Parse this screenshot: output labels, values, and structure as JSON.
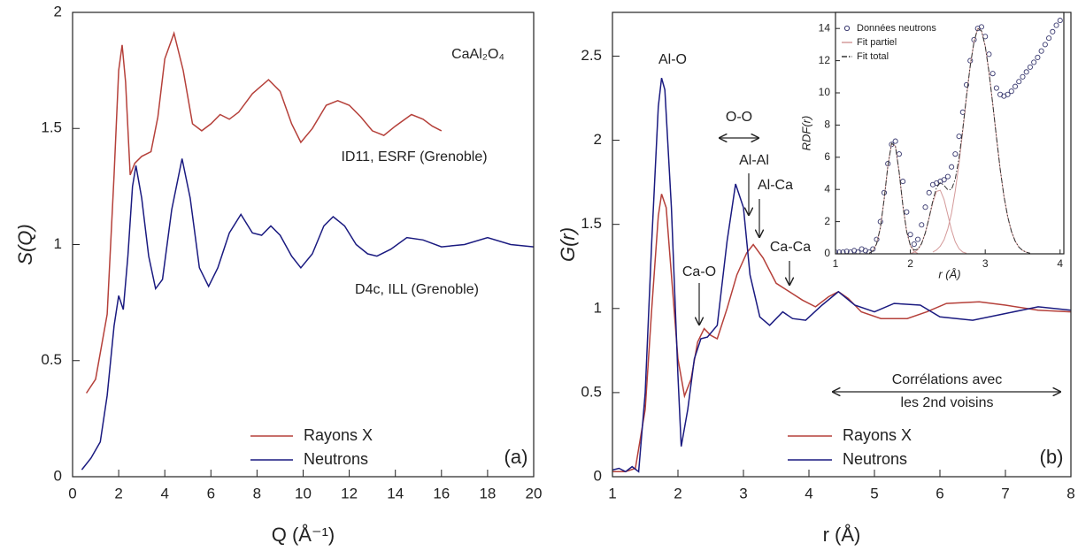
{
  "chart_data": [
    {
      "type": "line",
      "xlabel": "Q (Å⁻¹)",
      "ylabel": "S(Q)",
      "xlim": [
        0,
        20
      ],
      "ylim": [
        0,
        2
      ],
      "xticks": [
        0,
        2,
        4,
        6,
        8,
        10,
        12,
        14,
        16,
        18,
        20
      ],
      "yticks": [
        0,
        0.5,
        1,
        1.5,
        2
      ],
      "annotations": [
        "CaAl₂O₄",
        "ID11, ESRF (Grenoble)",
        "D4c, ILL (Grenoble)",
        "(a)"
      ],
      "series": [
        {
          "name": "Rayons X",
          "color": "#b5403a",
          "x": [
            0.6,
            1.0,
            1.5,
            1.8,
            2.0,
            2.15,
            2.3,
            2.5,
            2.7,
            3.0,
            3.4,
            3.7,
            4.0,
            4.4,
            4.8,
            5.2,
            5.6,
            6.0,
            6.4,
            6.8,
            7.2,
            7.8,
            8.5,
            9.0,
            9.5,
            9.9,
            10.4,
            11.0,
            11.5,
            12.0,
            12.5,
            13.0,
            13.5,
            14.0,
            14.7,
            15.2,
            15.6,
            16.0
          ],
          "values": [
            0.36,
            0.42,
            0.7,
            1.3,
            1.75,
            1.86,
            1.7,
            1.3,
            1.35,
            1.38,
            1.4,
            1.55,
            1.8,
            1.91,
            1.75,
            1.52,
            1.49,
            1.52,
            1.56,
            1.54,
            1.57,
            1.65,
            1.71,
            1.66,
            1.52,
            1.44,
            1.5,
            1.6,
            1.62,
            1.6,
            1.55,
            1.49,
            1.47,
            1.51,
            1.56,
            1.54,
            1.51,
            1.49
          ]
        },
        {
          "name": "Neutrons",
          "color": "#1a1a80",
          "x": [
            0.4,
            0.8,
            1.2,
            1.5,
            1.8,
            2.0,
            2.2,
            2.4,
            2.6,
            2.75,
            3.0,
            3.3,
            3.6,
            3.9,
            4.3,
            4.75,
            5.1,
            5.5,
            5.9,
            6.3,
            6.8,
            7.3,
            7.8,
            8.2,
            8.6,
            9.0,
            9.5,
            9.9,
            10.4,
            10.9,
            11.3,
            11.8,
            12.3,
            12.8,
            13.2,
            13.8,
            14.5,
            15.2,
            16,
            17,
            18,
            19,
            20
          ],
          "values": [
            0.03,
            0.08,
            0.15,
            0.35,
            0.65,
            0.78,
            0.72,
            0.95,
            1.25,
            1.34,
            1.2,
            0.95,
            0.81,
            0.85,
            1.15,
            1.37,
            1.2,
            0.9,
            0.82,
            0.9,
            1.05,
            1.13,
            1.05,
            1.04,
            1.08,
            1.04,
            0.95,
            0.9,
            0.96,
            1.08,
            1.12,
            1.08,
            1.0,
            0.96,
            0.95,
            0.98,
            1.03,
            1.02,
            0.99,
            1.0,
            1.03,
            1.0,
            0.99
          ]
        }
      ]
    },
    {
      "type": "line",
      "xlabel": "r (Å)",
      "ylabel": "G(r)",
      "xlim": [
        1,
        8
      ],
      "ylim": [
        0,
        2.76
      ],
      "xticks": [
        1,
        2,
        3,
        4,
        5,
        6,
        7,
        8
      ],
      "yticks": [
        0,
        0.5,
        1,
        1.5,
        2,
        2.5
      ],
      "annotations": [
        "Al-O",
        "O-O",
        "Al-Al",
        "Al-Ca",
        "Ca-O",
        "Ca-Ca",
        "Corrélations avec",
        "les 2nd voisins",
        "(b)"
      ],
      "series": [
        {
          "name": "Rayons X",
          "color": "#b5403a",
          "x": [
            1.0,
            1.2,
            1.35,
            1.5,
            1.6,
            1.7,
            1.75,
            1.82,
            1.9,
            2.0,
            2.1,
            2.2,
            2.3,
            2.4,
            2.5,
            2.6,
            2.75,
            2.9,
            3.05,
            3.15,
            3.3,
            3.5,
            3.7,
            3.9,
            4.1,
            4.3,
            4.45,
            4.6,
            4.8,
            5.1,
            5.5,
            5.8,
            6.1,
            6.6,
            7.0,
            7.5,
            8.0
          ],
          "values": [
            0.03,
            0.03,
            0.05,
            0.4,
            1.0,
            1.55,
            1.68,
            1.6,
            1.2,
            0.7,
            0.48,
            0.58,
            0.8,
            0.88,
            0.84,
            0.82,
            1.0,
            1.2,
            1.33,
            1.38,
            1.3,
            1.15,
            1.1,
            1.05,
            1.01,
            1.07,
            1.1,
            1.06,
            0.98,
            0.94,
            0.94,
            0.98,
            1.03,
            1.04,
            1.02,
            0.99,
            0.98
          ]
        },
        {
          "name": "Neutrons",
          "color": "#1a1a80",
          "x": [
            1.0,
            1.1,
            1.2,
            1.3,
            1.4,
            1.5,
            1.6,
            1.7,
            1.75,
            1.8,
            1.9,
            2.0,
            2.05,
            2.15,
            2.25,
            2.35,
            2.45,
            2.6,
            2.75,
            2.88,
            3.0,
            3.1,
            3.25,
            3.4,
            3.6,
            3.75,
            3.95,
            4.2,
            4.45,
            4.7,
            5.0,
            5.3,
            5.7,
            6.0,
            6.5,
            7.0,
            7.5,
            8.0
          ],
          "values": [
            0.04,
            0.05,
            0.03,
            0.06,
            0.03,
            0.5,
            1.4,
            2.2,
            2.37,
            2.3,
            1.6,
            0.6,
            0.18,
            0.4,
            0.7,
            0.82,
            0.83,
            0.9,
            1.4,
            1.74,
            1.6,
            1.2,
            0.95,
            0.9,
            0.98,
            0.94,
            0.93,
            1.02,
            1.1,
            1.02,
            0.98,
            1.03,
            1.02,
            0.95,
            0.93,
            0.97,
            1.01,
            0.99
          ]
        }
      ]
    },
    {
      "type": "line",
      "xlabel": "r (Å)",
      "ylabel": "RDF(r)",
      "xlim": [
        1,
        4.05
      ],
      "ylim": [
        0,
        15
      ],
      "xticks": [
        1,
        2,
        3,
        4
      ],
      "yticks": [
        0,
        2,
        4,
        6,
        8,
        10,
        12,
        14
      ],
      "series": [
        {
          "name": "Données neutrons",
          "color": "#3a3a70",
          "marker": "circle",
          "x": [
            1.0,
            1.05,
            1.1,
            1.15,
            1.2,
            1.25,
            1.3,
            1.35,
            1.4,
            1.45,
            1.5,
            1.55,
            1.6,
            1.65,
            1.7,
            1.75,
            1.8,
            1.85,
            1.9,
            1.95,
            2.0,
            2.05,
            2.1,
            2.15,
            2.2,
            2.25,
            2.3,
            2.35,
            2.4,
            2.45,
            2.5,
            2.55,
            2.6,
            2.65,
            2.7,
            2.75,
            2.8,
            2.85,
            2.9,
            2.95,
            3.0,
            3.05,
            3.1,
            3.15,
            3.2,
            3.25,
            3.3,
            3.35,
            3.4,
            3.45,
            3.5,
            3.55,
            3.6,
            3.65,
            3.7,
            3.75,
            3.8,
            3.85,
            3.9,
            3.95,
            4.0
          ],
          "values": [
            0.1,
            0.1,
            0.1,
            0.15,
            0.1,
            0.2,
            0.1,
            0.3,
            0.2,
            0.1,
            0.3,
            0.9,
            2.0,
            3.8,
            5.6,
            6.8,
            7.0,
            6.2,
            4.5,
            2.6,
            1.2,
            0.6,
            0.9,
            1.8,
            2.9,
            3.8,
            4.3,
            4.4,
            4.5,
            4.6,
            4.8,
            5.4,
            6.2,
            7.3,
            8.8,
            10.5,
            12.0,
            13.3,
            14.0,
            14.1,
            13.5,
            12.4,
            11.2,
            10.3,
            9.9,
            9.8,
            9.9,
            10.1,
            10.4,
            10.7,
            11.0,
            11.3,
            11.6,
            11.9,
            12.2,
            12.6,
            13.0,
            13.4,
            13.8,
            14.2,
            14.5
          ]
        },
        {
          "name": "Fit partiel",
          "color": "#d49a9a",
          "x": [
            1.45,
            1.5,
            1.55,
            1.6,
            1.65,
            1.7,
            1.75,
            1.8,
            1.85,
            1.9,
            1.95,
            2.0,
            2.05,
            2.1,
            null,
            2.0,
            2.05,
            2.1,
            2.15,
            2.2,
            2.25,
            2.3,
            2.35,
            2.4,
            2.45,
            2.5,
            2.55,
            2.6,
            2.65,
            2.7,
            2.75,
            null,
            2.3,
            2.35,
            2.4,
            2.45,
            2.5,
            2.55,
            2.6,
            2.65,
            2.7,
            2.75,
            2.8,
            2.85,
            2.9,
            2.95,
            3.0,
            3.05,
            3.1,
            3.15,
            3.2,
            3.25,
            3.3,
            3.35,
            3.4,
            3.45,
            3.5,
            3.55,
            3.6
          ],
          "values": [
            0.04,
            0.18,
            0.62,
            1.65,
            3.4,
            5.48,
            6.86,
            6.69,
            5.08,
            3.01,
            1.39,
            0.5,
            0.14,
            0.03,
            null,
            0.03,
            0.09,
            0.26,
            0.64,
            1.3,
            2.22,
            3.2,
            3.88,
            3.95,
            3.37,
            2.43,
            1.47,
            0.75,
            0.32,
            0.11,
            0.04,
            null,
            0.11,
            0.24,
            0.48,
            0.88,
            1.55,
            2.53,
            3.9,
            5.63,
            7.64,
            9.76,
            11.7,
            13.17,
            14.0,
            13.85,
            12.9,
            11.3,
            9.34,
            7.23,
            5.25,
            3.59,
            2.3,
            1.39,
            0.79,
            0.42,
            0.21,
            0.1,
            0.04
          ]
        },
        {
          "name": "Fit total",
          "color": "#333333",
          "dash": "dashdot",
          "x": [
            1.45,
            1.5,
            1.55,
            1.6,
            1.65,
            1.7,
            1.75,
            1.8,
            1.85,
            1.9,
            1.95,
            2.0,
            2.05,
            2.1,
            2.15,
            2.2,
            2.25,
            2.3,
            2.35,
            2.4,
            2.45,
            2.5,
            2.55,
            2.6,
            2.65,
            2.7,
            2.75,
            2.8,
            2.85,
            2.9,
            2.95,
            3.0,
            3.05,
            3.1,
            3.15,
            3.2,
            3.25,
            3.3,
            3.35,
            3.4,
            3.45,
            3.5,
            3.55,
            3.6
          ],
          "values": [
            0.04,
            0.18,
            0.62,
            1.65,
            3.4,
            5.48,
            6.86,
            6.69,
            5.08,
            3.01,
            1.39,
            0.53,
            0.23,
            0.29,
            0.64,
            1.3,
            2.22,
            3.31,
            4.12,
            4.43,
            4.25,
            3.98,
            4.0,
            4.65,
            5.95,
            7.75,
            9.8,
            11.7,
            13.17,
            14.0,
            13.85,
            12.9,
            11.3,
            9.34,
            7.23,
            5.25,
            3.59,
            2.3,
            1.39,
            0.79,
            0.42,
            0.21,
            0.1,
            0.04
          ]
        }
      ]
    }
  ]
}
